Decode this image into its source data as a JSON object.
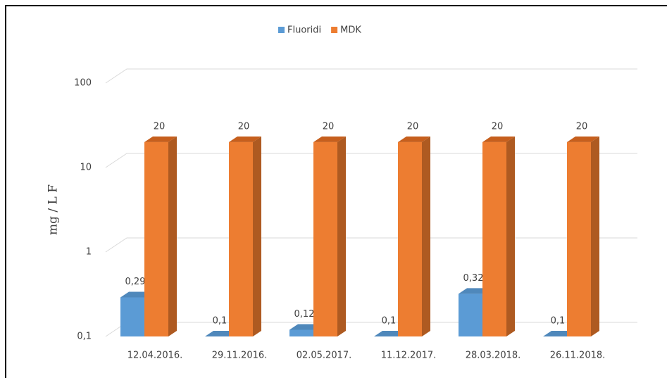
{
  "chart_data": {
    "type": "bar3d",
    "y_label": "mg / L F",
    "categories": [
      "12.04.2016.",
      "29.11.2016.",
      "02.05.2017.",
      "11.12.2017.",
      "28.03.2018.",
      "26.11.2018."
    ],
    "series": [
      {
        "name": "Fluoridi",
        "color": "#5b9bd5",
        "values": [
          0.29,
          0.1,
          0.12,
          0.1,
          0.32,
          0.1
        ],
        "value_labels": [
          "0,29",
          "0,1",
          "0,12",
          "0,1",
          "0,32",
          "0,1"
        ]
      },
      {
        "name": "MDK",
        "color": "#ed7d31",
        "values": [
          20,
          20,
          20,
          20,
          20,
          20
        ]
      }
    ],
    "log_scale": true,
    "ylim": [
      0.1,
      100
    ],
    "yticks": [
      {
        "value": 0.1,
        "label": "0,1"
      },
      1,
      10,
      100
    ],
    "grid": true,
    "legend": "top"
  }
}
